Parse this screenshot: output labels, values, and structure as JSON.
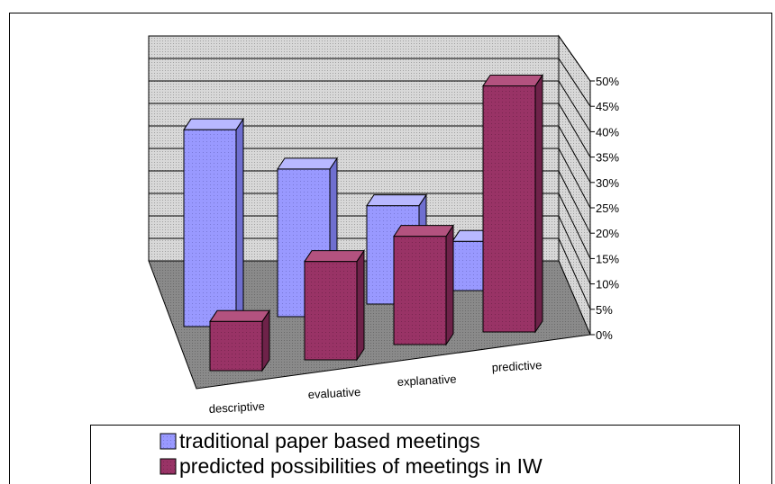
{
  "chart_data": {
    "type": "bar",
    "three_d": true,
    "categories": [
      "descriptive",
      "evaluative",
      "explanative",
      "predictive"
    ],
    "series": [
      {
        "name": "traditional paper based meetings",
        "values": [
          40,
          30,
          20,
          10
        ],
        "color": "#9999ff"
      },
      {
        "name": "predicted possibilities of meetings in IW",
        "values": [
          10,
          20,
          22,
          50
        ],
        "color": "#993366"
      }
    ],
    "y_ticks": [
      "0%",
      "5%",
      "10%",
      "15%",
      "20%",
      "25%",
      "30%",
      "35%",
      "40%",
      "45%",
      "50%"
    ],
    "ylim": [
      0,
      50
    ],
    "grid": true,
    "legend_position": "bottom",
    "colors": {
      "wall": "#c0c0c0",
      "floor": "#808080",
      "border": "#000000"
    }
  }
}
